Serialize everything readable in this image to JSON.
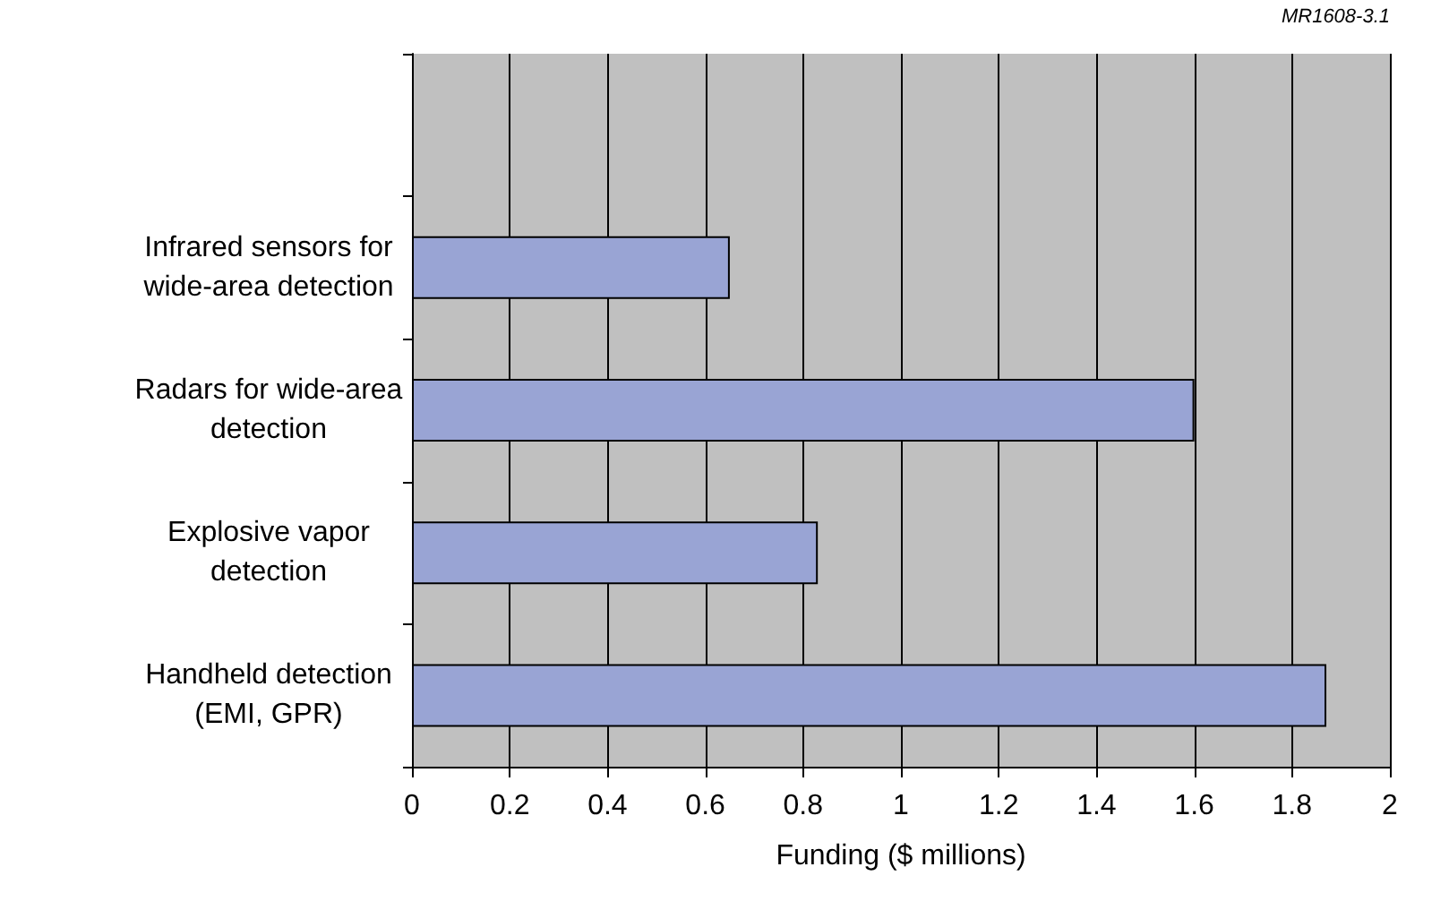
{
  "chart_data": {
    "type": "bar",
    "orientation": "horizontal",
    "xlabel": "Funding ($ millions)",
    "annotations": [
      "MR1608-3.1"
    ],
    "categories": [
      null,
      "Infrared sensors for\nwide-area detection",
      "Radars for wide-area\ndetection",
      "Explosive vapor\ndetection",
      "Handheld detection\n(EMI, GPR)"
    ],
    "values": [
      null,
      0.65,
      1.6,
      0.83,
      1.87
    ],
    "color": "#99a4d4",
    "xlim": [
      0,
      2
    ],
    "xticks": [
      0,
      0.2,
      0.4,
      0.6,
      0.8,
      1,
      1.2,
      1.4,
      1.6,
      1.8,
      2
    ],
    "grid": "x"
  }
}
